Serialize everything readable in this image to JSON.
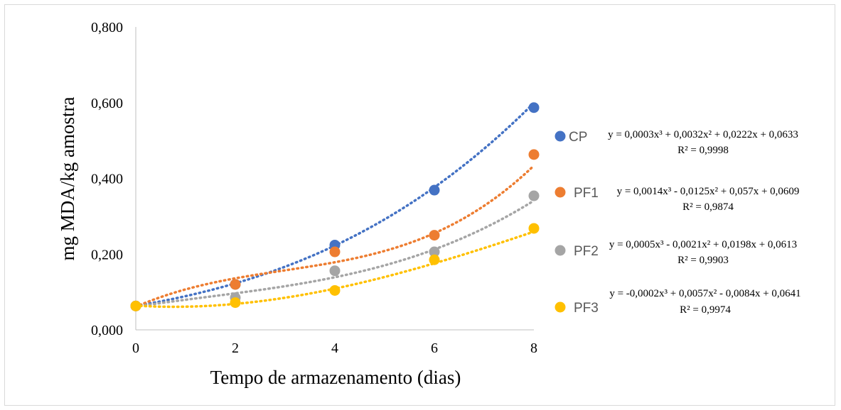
{
  "chart_data": {
    "type": "scatter",
    "xlabel": "Tempo de armazenamento (dias)",
    "ylabel": "mg MDA/kg amostra",
    "xlim": [
      0,
      8
    ],
    "ylim": [
      0,
      0.8
    ],
    "x_ticks": [
      "0",
      "2",
      "4",
      "6",
      "8"
    ],
    "y_ticks": [
      "0,000",
      "0,200",
      "0,400",
      "0,600",
      "0,800"
    ],
    "grid": false,
    "legend_position": "right",
    "series": [
      {
        "name": "CP",
        "color": "#4472C4",
        "x": [
          0,
          2,
          4,
          6,
          8
        ],
        "y": [
          0.063,
          0.12,
          0.224,
          0.369,
          0.587
        ],
        "trendline": {
          "type": "polynomial",
          "coefficients": [
            0.0003,
            0.0032,
            0.0222,
            0.0633
          ]
        },
        "equation": "y = 0,0003x³ + 0,0032x² + 0,0222x + 0,0633",
        "r2": "R² = 0,9998"
      },
      {
        "name": "PF1",
        "color": "#ED7D31",
        "x": [
          0,
          2,
          4,
          6,
          8
        ],
        "y": [
          0.063,
          0.12,
          0.206,
          0.25,
          0.463
        ],
        "trendline": {
          "type": "polynomial",
          "coefficients": [
            0.0014,
            -0.0125,
            0.057,
            0.0609
          ]
        },
        "equation": "y = 0,0014x³ - 0,0125x² + 0,057x + 0,0609",
        "r2": "R² = 0,9874"
      },
      {
        "name": "PF2",
        "color": "#A5A5A5",
        "x": [
          0,
          2,
          4,
          6,
          8
        ],
        "y": [
          0.063,
          0.085,
          0.156,
          0.206,
          0.354
        ],
        "trendline": {
          "type": "polynomial",
          "coefficients": [
            0.0005,
            -0.0021,
            0.0198,
            0.0613
          ]
        },
        "equation": "y = 0,0005x³ - 0,0021x² + 0,0198x + 0,0613",
        "r2": "R² = 0,9903"
      },
      {
        "name": "PF3",
        "color": "#FFC000",
        "x": [
          0,
          2,
          4,
          6,
          8
        ],
        "y": [
          0.063,
          0.072,
          0.104,
          0.185,
          0.268
        ],
        "trendline": {
          "type": "polynomial",
          "coefficients": [
            -0.0002,
            0.0057,
            -0.0084,
            0.0641
          ]
        },
        "equation": "y = -0,0002x³ + 0,0057x² - 0,0084x + 0,0641",
        "r2": "R² = 0,9974"
      }
    ]
  }
}
